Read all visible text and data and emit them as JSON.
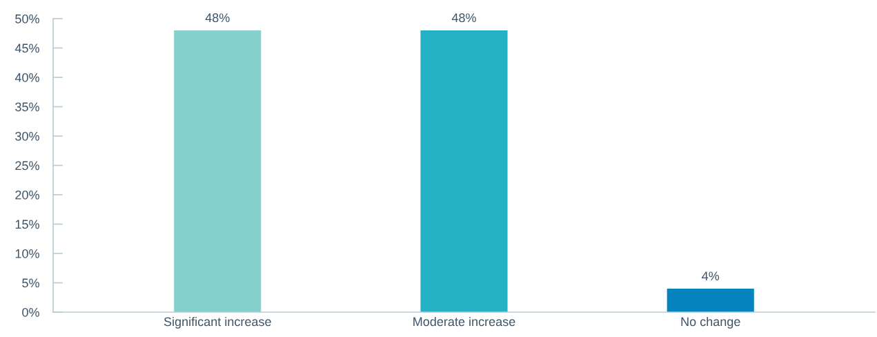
{
  "chart_data": {
    "type": "bar",
    "categories": [
      "Significant increase",
      "Moderate increase",
      "No change"
    ],
    "values": [
      48,
      48,
      4
    ],
    "colors": [
      "#84d0cc",
      "#25b0c3",
      "#0584bd"
    ],
    "value_labels": [
      "48%",
      "48%",
      "4%"
    ],
    "ylim": [
      0,
      50
    ],
    "yticks": [
      {
        "value": 0,
        "label": "0%"
      },
      {
        "value": 5,
        "label": "5%"
      },
      {
        "value": 10,
        "label": "10%"
      },
      {
        "value": 15,
        "label": "15%"
      },
      {
        "value": 20,
        "label": "20%"
      },
      {
        "value": 25,
        "label": "25%"
      },
      {
        "value": 30,
        "label": "30%"
      },
      {
        "value": 35,
        "label": "35%"
      },
      {
        "value": 40,
        "label": "40%"
      },
      {
        "value": 45,
        "label": "45%"
      },
      {
        "value": 50,
        "label": "50%"
      }
    ],
    "grid": false
  }
}
